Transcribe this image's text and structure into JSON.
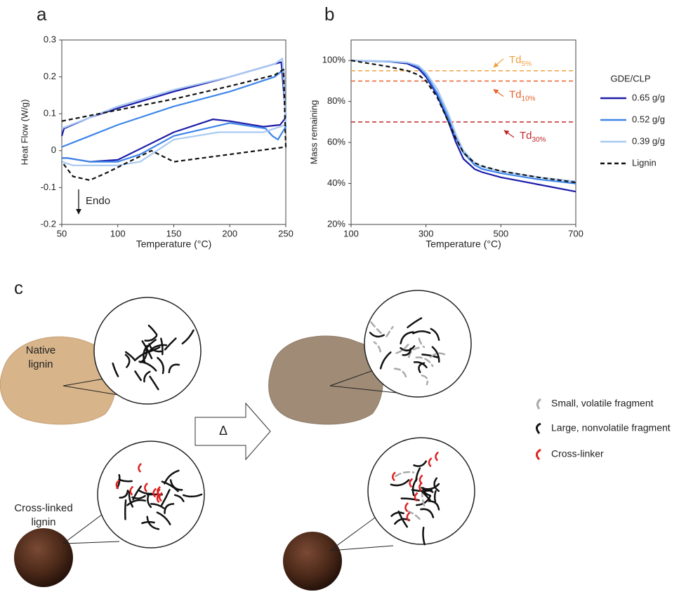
{
  "chart_data": [
    {
      "type": "line",
      "panel": "a",
      "x_label": "Temperature (°C)",
      "y_label": "Heat Flow (W/g)",
      "xlim": [
        50,
        250
      ],
      "ylim": [
        -0.2,
        0.3
      ],
      "xticks": [
        50,
        100,
        150,
        200,
        250
      ],
      "yticks": [
        -0.2,
        -0.1,
        0,
        0.1,
        0.2,
        0.3
      ],
      "annotations": [
        {
          "text": "Endo"
        }
      ],
      "series": [
        {
          "color": "#1c1ca8",
          "dash": false,
          "x": [
            50,
            52,
            75,
            100,
            150,
            200,
            240,
            246,
            250,
            245,
            230,
            200,
            185,
            150,
            120,
            100,
            75,
            55,
            50
          ],
          "values": [
            0.04,
            0.06,
            0.09,
            0.115,
            0.16,
            0.2,
            0.235,
            0.24,
            0.09,
            0.07,
            0.065,
            0.08,
            0.085,
            0.05,
            0.005,
            -0.025,
            -0.03,
            -0.02,
            -0.02
          ]
        },
        {
          "color": "#3d86ea",
          "dash": false,
          "x": [
            50,
            75,
            100,
            150,
            200,
            240,
            248,
            250,
            243,
            238,
            232,
            200,
            150,
            120,
            100,
            75,
            55,
            50
          ],
          "values": [
            0.01,
            0.04,
            0.07,
            0.12,
            0.16,
            0.2,
            0.22,
            0.065,
            0.03,
            0.04,
            0.06,
            0.075,
            0.04,
            -0.01,
            -0.03,
            -0.03,
            -0.02,
            -0.02
          ]
        },
        {
          "color": "#a9c9f2",
          "dash": false,
          "x": [
            50,
            75,
            100,
            150,
            200,
            240,
            247,
            250,
            230,
            190,
            150,
            120,
            100,
            60,
            50
          ],
          "values": [
            0.06,
            0.09,
            0.12,
            0.165,
            0.2,
            0.235,
            0.25,
            0.07,
            0.05,
            0.05,
            0.03,
            -0.03,
            -0.04,
            -0.04,
            -0.03
          ]
        },
        {
          "color": "#111111",
          "dash": true,
          "x": [
            50,
            100,
            150,
            200,
            240,
            248,
            250,
            200,
            150,
            130,
            110,
            90,
            75,
            60,
            50
          ],
          "values": [
            0.08,
            0.11,
            0.14,
            0.175,
            0.205,
            0.22,
            0.01,
            -0.01,
            -0.03,
            0.0,
            -0.03,
            -0.06,
            -0.08,
            -0.07,
            -0.03
          ]
        }
      ]
    },
    {
      "type": "line",
      "panel": "b",
      "x_label": "Temperature (°C)",
      "y_label": "Mass remaining",
      "xlim": [
        100,
        700
      ],
      "ylim": [
        20,
        110
      ],
      "xticks": [
        100,
        300,
        500,
        700
      ],
      "yticks": [
        {
          "value": 20,
          "label": "20%"
        },
        {
          "value": 40,
          "label": "40%"
        },
        {
          "value": 60,
          "label": "60%"
        },
        {
          "value": 80,
          "label": "80%"
        },
        {
          "value": 100,
          "label": "100%"
        }
      ],
      "legend_title": "GDE/CLP",
      "thresholds": [
        {
          "value": 95,
          "text": "Td",
          "sub": "5%",
          "color": "#f0a040"
        },
        {
          "value": 90,
          "text": "Td",
          "sub": "10%",
          "color": "#e8602a"
        },
        {
          "value": 70,
          "text": "Td",
          "sub": "30%",
          "color": "#c0282a"
        }
      ],
      "series": [
        {
          "name": "0.65 g/g",
          "color": "#1c1ca8",
          "dash": false,
          "x": [
            100,
            200,
            250,
            280,
            300,
            330,
            360,
            380,
            400,
            430,
            450,
            500,
            600,
            700
          ],
          "values": [
            100,
            99.5,
            98.5,
            96,
            92,
            83,
            70,
            60,
            52,
            47,
            45.5,
            43,
            39.5,
            36
          ]
        },
        {
          "name": "0.52 g/g",
          "color": "#3d86ea",
          "dash": false,
          "x": [
            100,
            200,
            250,
            280,
            300,
            330,
            360,
            380,
            400,
            430,
            450,
            500,
            600,
            700
          ],
          "values": [
            100,
            99.5,
            99,
            97,
            93,
            84,
            72,
            62,
            55,
            49,
            47,
            45,
            42,
            40
          ]
        },
        {
          "name": "0.39 g/g",
          "color": "#a9c9f2",
          "dash": false,
          "x": [
            100,
            200,
            250,
            280,
            300,
            330,
            360,
            380,
            400,
            430,
            450,
            500,
            600,
            700
          ],
          "values": [
            100,
            99.7,
            99,
            97.5,
            94,
            86,
            74,
            64,
            56,
            50,
            48,
            46,
            43,
            41
          ]
        },
        {
          "name": "Lignin",
          "color": "#111111",
          "dash": true,
          "x": [
            100,
            200,
            250,
            280,
            300,
            330,
            360,
            380,
            400,
            430,
            450,
            500,
            600,
            700
          ],
          "values": [
            100,
            97,
            95,
            93,
            90,
            82,
            70,
            62,
            55,
            50,
            48.5,
            46,
            43,
            40.5
          ]
        }
      ]
    }
  ],
  "diagram": {
    "panel": "c",
    "native_label": [
      "Native",
      "lignin"
    ],
    "crosslinked_label": [
      "Cross-linked",
      "lignin"
    ],
    "heat_symbol": "Δ",
    "legend": [
      "Small, volatile fragment",
      "Large, nonvolatile fragment",
      "Cross-linker"
    ]
  }
}
